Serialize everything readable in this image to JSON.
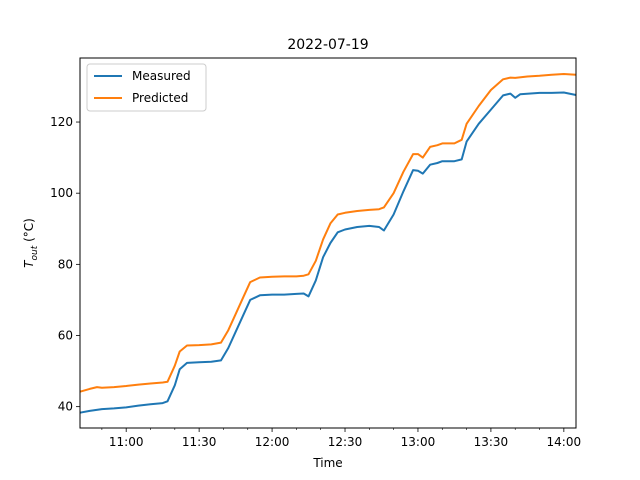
{
  "chart_data": {
    "type": "line",
    "title": "2022-07-19",
    "xlabel": "Time",
    "ylabel_main": "T",
    "ylabel_sub": "out",
    "ylabel_unit": " (°C)",
    "xlim": [
      "10:41",
      "14:05"
    ],
    "ylim": [
      34,
      138
    ],
    "x_ticks": [
      "11:00",
      "11:30",
      "12:00",
      "12:30",
      "13:00",
      "13:30",
      "14:00"
    ],
    "y_ticks": [
      40,
      60,
      80,
      100,
      120
    ],
    "grid": false,
    "legend": "upper-left",
    "series": [
      {
        "name": "Measured",
        "color": "#1f77b4",
        "points": [
          [
            "10:41",
            38.3
          ],
          [
            "10:45",
            38.8
          ],
          [
            "10:50",
            39.3
          ],
          [
            "10:55",
            39.5
          ],
          [
            "11:00",
            39.8
          ],
          [
            "11:05",
            40.3
          ],
          [
            "11:10",
            40.7
          ],
          [
            "11:15",
            41.0
          ],
          [
            "11:17",
            41.5
          ],
          [
            "11:20",
            46.0
          ],
          [
            "11:22",
            50.5
          ],
          [
            "11:25",
            52.3
          ],
          [
            "11:30",
            52.5
          ],
          [
            "11:35",
            52.6
          ],
          [
            "11:39",
            53.0
          ],
          [
            "11:42",
            56.5
          ],
          [
            "11:45",
            61.0
          ],
          [
            "11:48",
            65.5
          ],
          [
            "11:51",
            70.0
          ],
          [
            "11:55",
            71.3
          ],
          [
            "12:00",
            71.5
          ],
          [
            "12:05",
            71.5
          ],
          [
            "12:10",
            71.7
          ],
          [
            "12:13",
            71.8
          ],
          [
            "12:15",
            71.0
          ],
          [
            "12:18",
            75.5
          ],
          [
            "12:21",
            82.0
          ],
          [
            "12:24",
            86.0
          ],
          [
            "12:27",
            89.0
          ],
          [
            "12:30",
            89.8
          ],
          [
            "12:35",
            90.5
          ],
          [
            "12:40",
            90.8
          ],
          [
            "12:44",
            90.5
          ],
          [
            "12:46",
            89.5
          ],
          [
            "12:50",
            94.0
          ],
          [
            "12:54",
            100.5
          ],
          [
            "12:58",
            106.5
          ],
          [
            "13:00",
            106.3
          ],
          [
            "13:02",
            105.5
          ],
          [
            "13:05",
            108.0
          ],
          [
            "13:08",
            108.5
          ],
          [
            "13:10",
            109.0
          ],
          [
            "13:15",
            109.0
          ],
          [
            "13:18",
            109.5
          ],
          [
            "13:20",
            114.5
          ],
          [
            "13:25",
            119.5
          ],
          [
            "13:30",
            123.5
          ],
          [
            "13:35",
            127.5
          ],
          [
            "13:38",
            128.0
          ],
          [
            "13:40",
            126.8
          ],
          [
            "13:42",
            127.8
          ],
          [
            "13:50",
            128.2
          ],
          [
            "13:55",
            128.2
          ],
          [
            "14:00",
            128.3
          ],
          [
            "14:05",
            127.6
          ]
        ]
      },
      {
        "name": "Predicted",
        "color": "#ff7f0e",
        "points": [
          [
            "10:41",
            44.2
          ],
          [
            "10:45",
            45.0
          ],
          [
            "10:48",
            45.5
          ],
          [
            "10:50",
            45.3
          ],
          [
            "10:55",
            45.5
          ],
          [
            "11:00",
            45.8
          ],
          [
            "11:05",
            46.2
          ],
          [
            "11:10",
            46.5
          ],
          [
            "11:15",
            46.8
          ],
          [
            "11:17",
            47.0
          ],
          [
            "11:20",
            51.5
          ],
          [
            "11:22",
            55.5
          ],
          [
            "11:25",
            57.2
          ],
          [
            "11:30",
            57.3
          ],
          [
            "11:35",
            57.5
          ],
          [
            "11:39",
            58.0
          ],
          [
            "11:42",
            61.5
          ],
          [
            "11:45",
            66.0
          ],
          [
            "11:48",
            70.5
          ],
          [
            "11:51",
            75.0
          ],
          [
            "11:55",
            76.3
          ],
          [
            "12:00",
            76.5
          ],
          [
            "12:05",
            76.6
          ],
          [
            "12:10",
            76.6
          ],
          [
            "12:13",
            76.8
          ],
          [
            "12:15",
            77.2
          ],
          [
            "12:18",
            81.0
          ],
          [
            "12:21",
            87.0
          ],
          [
            "12:24",
            91.5
          ],
          [
            "12:27",
            94.0
          ],
          [
            "12:30",
            94.5
          ],
          [
            "12:35",
            95.0
          ],
          [
            "12:40",
            95.3
          ],
          [
            "12:44",
            95.5
          ],
          [
            "12:46",
            96.0
          ],
          [
            "12:50",
            100.0
          ],
          [
            "12:54",
            106.0
          ],
          [
            "12:58",
            111.0
          ],
          [
            "13:00",
            111.0
          ],
          [
            "13:02",
            110.0
          ],
          [
            "13:05",
            113.0
          ],
          [
            "13:08",
            113.5
          ],
          [
            "13:10",
            114.0
          ],
          [
            "13:15",
            114.0
          ],
          [
            "13:18",
            115.0
          ],
          [
            "13:20",
            119.5
          ],
          [
            "13:25",
            124.5
          ],
          [
            "13:30",
            129.0
          ],
          [
            "13:35",
            132.0
          ],
          [
            "13:38",
            132.5
          ],
          [
            "13:40",
            132.4
          ],
          [
            "13:45",
            132.8
          ],
          [
            "13:50",
            133.0
          ],
          [
            "13:55",
            133.3
          ],
          [
            "14:00",
            133.5
          ],
          [
            "14:05",
            133.3
          ]
        ]
      }
    ]
  }
}
